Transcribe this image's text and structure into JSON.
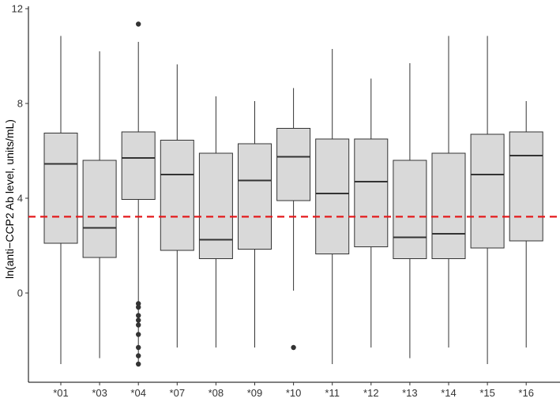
{
  "chart_data": {
    "type": "boxplot",
    "title": "",
    "xlabel": "",
    "ylabel": "ln(anti−CCP2 Ab level, units/mL)",
    "ylim": [
      -3.2,
      12
    ],
    "yticks": [
      0,
      4,
      8,
      12
    ],
    "reference_line": {
      "y": 3.22,
      "color": "#e41a1c",
      "style": "dashed"
    },
    "box_fill": "#d9d9d9",
    "box_stroke": "#333333",
    "categories": [
      "*01",
      "*03",
      "*04",
      "*07",
      "*08",
      "*09",
      "*10",
      "*11",
      "*12",
      "*13",
      "*14",
      "*15",
      "*16"
    ],
    "boxes": [
      {
        "label": "*01",
        "low": -3.0,
        "q1": 2.1,
        "median": 5.45,
        "q3": 6.75,
        "high": 10.85,
        "outliers": []
      },
      {
        "label": "*03",
        "low": -2.75,
        "q1": 1.5,
        "median": 2.75,
        "q3": 5.6,
        "high": 10.2,
        "outliers": []
      },
      {
        "label": "*04",
        "low": -3.0,
        "q1": 3.95,
        "median": 5.7,
        "q3": 6.8,
        "high": 10.6,
        "outliers": [
          11.35,
          -0.45,
          -0.6,
          -0.95,
          -1.15,
          -1.35,
          -1.75,
          -2.3,
          -2.65,
          -3.0
        ]
      },
      {
        "label": "*07",
        "low": -2.3,
        "q1": 1.8,
        "median": 5.0,
        "q3": 6.45,
        "high": 9.65,
        "outliers": []
      },
      {
        "label": "*08",
        "low": -2.3,
        "q1": 1.45,
        "median": 2.25,
        "q3": 5.9,
        "high": 8.3,
        "outliers": []
      },
      {
        "label": "*09",
        "low": -2.3,
        "q1": 1.85,
        "median": 4.75,
        "q3": 6.3,
        "high": 8.1,
        "outliers": []
      },
      {
        "label": "*10",
        "low": 0.1,
        "q1": 3.9,
        "median": 5.75,
        "q3": 6.95,
        "high": 8.65,
        "outliers": [
          -2.3
        ]
      },
      {
        "label": "*11",
        "low": -3.0,
        "q1": 1.65,
        "median": 4.2,
        "q3": 6.5,
        "high": 10.3,
        "outliers": []
      },
      {
        "label": "*12",
        "low": -2.3,
        "q1": 1.95,
        "median": 4.7,
        "q3": 6.5,
        "high": 9.05,
        "outliers": []
      },
      {
        "label": "*13",
        "low": -2.75,
        "q1": 1.45,
        "median": 2.35,
        "q3": 5.6,
        "high": 9.7,
        "outliers": []
      },
      {
        "label": "*14",
        "low": -2.3,
        "q1": 1.45,
        "median": 2.5,
        "q3": 5.9,
        "high": 10.85,
        "outliers": []
      },
      {
        "label": "*15",
        "low": -3.0,
        "q1": 1.9,
        "median": 5.0,
        "q3": 6.7,
        "high": 10.85,
        "outliers": []
      },
      {
        "label": "*16",
        "low": -2.3,
        "q1": 2.2,
        "median": 5.8,
        "q3": 6.8,
        "high": 8.1,
        "outliers": []
      }
    ]
  }
}
